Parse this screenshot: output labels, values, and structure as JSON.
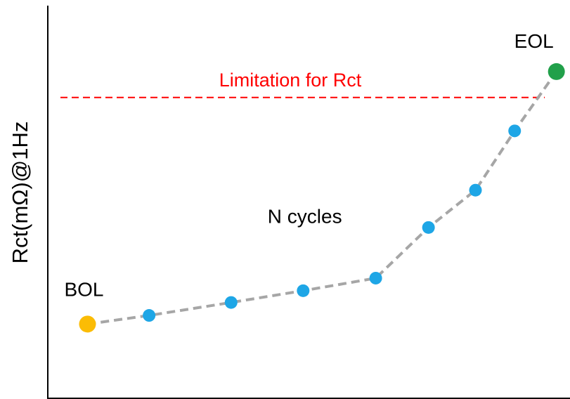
{
  "chart_data": {
    "type": "line",
    "title": "",
    "xlabel": "",
    "ylabel": "Rct(mΩ)@1Hz",
    "xlim": [
      0,
      100
    ],
    "ylim": [
      0,
      100
    ],
    "grid": false,
    "series": [
      {
        "color": "#a6a6a6",
        "points": [
          {
            "x": 7.6,
            "y": 18.9
          },
          {
            "x": 19.4,
            "y": 21.1
          },
          {
            "x": 35.1,
            "y": 24.4
          },
          {
            "x": 48.9,
            "y": 27.4
          },
          {
            "x": 62.8,
            "y": 30.6
          },
          {
            "x": 72.9,
            "y": 43.5
          },
          {
            "x": 81.9,
            "y": 53.0
          },
          {
            "x": 89.4,
            "y": 68.1
          },
          {
            "x": 97.4,
            "y": 83.2
          }
        ],
        "point_colors": [
          "#fbbc05",
          "#1ea6e6",
          "#1ea6e6",
          "#1ea6e6",
          "#1ea6e6",
          "#1ea6e6",
          "#1ea6e6",
          "#1ea6e6",
          "#21a04a"
        ],
        "point_kinds": [
          "end",
          "mid",
          "mid",
          "mid",
          "mid",
          "mid",
          "mid",
          "mid",
          "end"
        ]
      }
    ],
    "reference_line": {
      "y": 76.6,
      "label": "Limitation for Rct",
      "color": "#ff0000",
      "style": "dashed"
    },
    "annotations": [
      {
        "text": "BOL",
        "x": 7.6,
        "y": 18.9,
        "position": "above"
      },
      {
        "text": "EOL",
        "x": 97.4,
        "y": 83.2,
        "position": "above"
      },
      {
        "text": "N cycles",
        "x": 42.1,
        "y": 38.4,
        "position": "above"
      }
    ]
  }
}
